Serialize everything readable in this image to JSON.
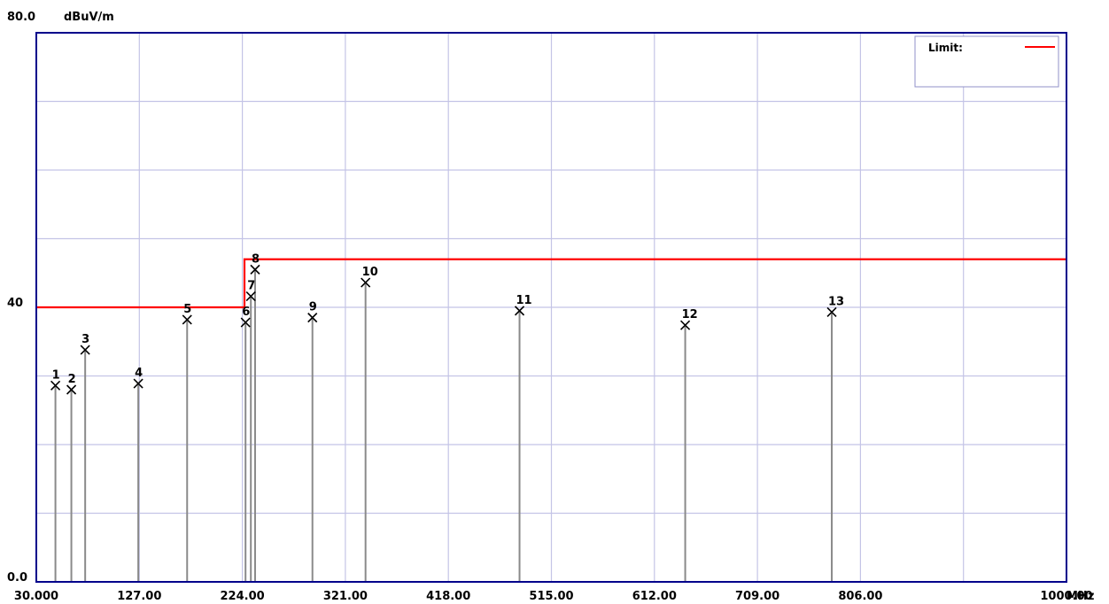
{
  "chart_data": {
    "type": "scatter",
    "title": "",
    "ylabel": "dBuV/m",
    "xunit": "MHz",
    "xlim": [
      30,
      1000
    ],
    "ylim": [
      0,
      80
    ],
    "grid": true,
    "legend_position": "top-right",
    "legend": {
      "label": "Limit:",
      "color": "#ff0000"
    },
    "y_tick_labels": [
      {
        "value": 80,
        "label": "80.0"
      },
      {
        "value": 40,
        "label": "40"
      },
      {
        "value": 0,
        "label": "0.0"
      }
    ],
    "x_tick_labels": [
      {
        "value": 30,
        "label": "30.000"
      },
      {
        "value": 127,
        "label": "127.00"
      },
      {
        "value": 224,
        "label": "224.00"
      },
      {
        "value": 321,
        "label": "321.00"
      },
      {
        "value": 418,
        "label": "418.00"
      },
      {
        "value": 515,
        "label": "515.00"
      },
      {
        "value": 612,
        "label": "612.00"
      },
      {
        "value": 709,
        "label": "709.00"
      },
      {
        "value": 806,
        "label": "806.00"
      },
      {
        "value": 1000,
        "label": "1000.00"
      }
    ],
    "limit_line": {
      "color": "#ff0000",
      "points": [
        [
          30,
          40
        ],
        [
          226,
          40
        ],
        [
          226,
          47
        ],
        [
          1000,
          47
        ]
      ]
    },
    "markers": [
      {
        "label": "1",
        "x": 48,
        "y": 28.6
      },
      {
        "label": "2",
        "x": 63,
        "y": 28.0
      },
      {
        "label": "3",
        "x": 76,
        "y": 33.8
      },
      {
        "label": "4",
        "x": 126,
        "y": 28.9
      },
      {
        "label": "5",
        "x": 172,
        "y": 38.2
      },
      {
        "label": "6",
        "x": 227,
        "y": 37.8
      },
      {
        "label": "7",
        "x": 232,
        "y": 41.6
      },
      {
        "label": "8",
        "x": 236,
        "y": 45.5
      },
      {
        "label": "9",
        "x": 290,
        "y": 38.5
      },
      {
        "label": "10",
        "x": 340,
        "y": 43.6
      },
      {
        "label": "11",
        "x": 485,
        "y": 39.5
      },
      {
        "label": "12",
        "x": 641,
        "y": 37.4
      },
      {
        "label": "13",
        "x": 779,
        "y": 39.3
      }
    ]
  }
}
